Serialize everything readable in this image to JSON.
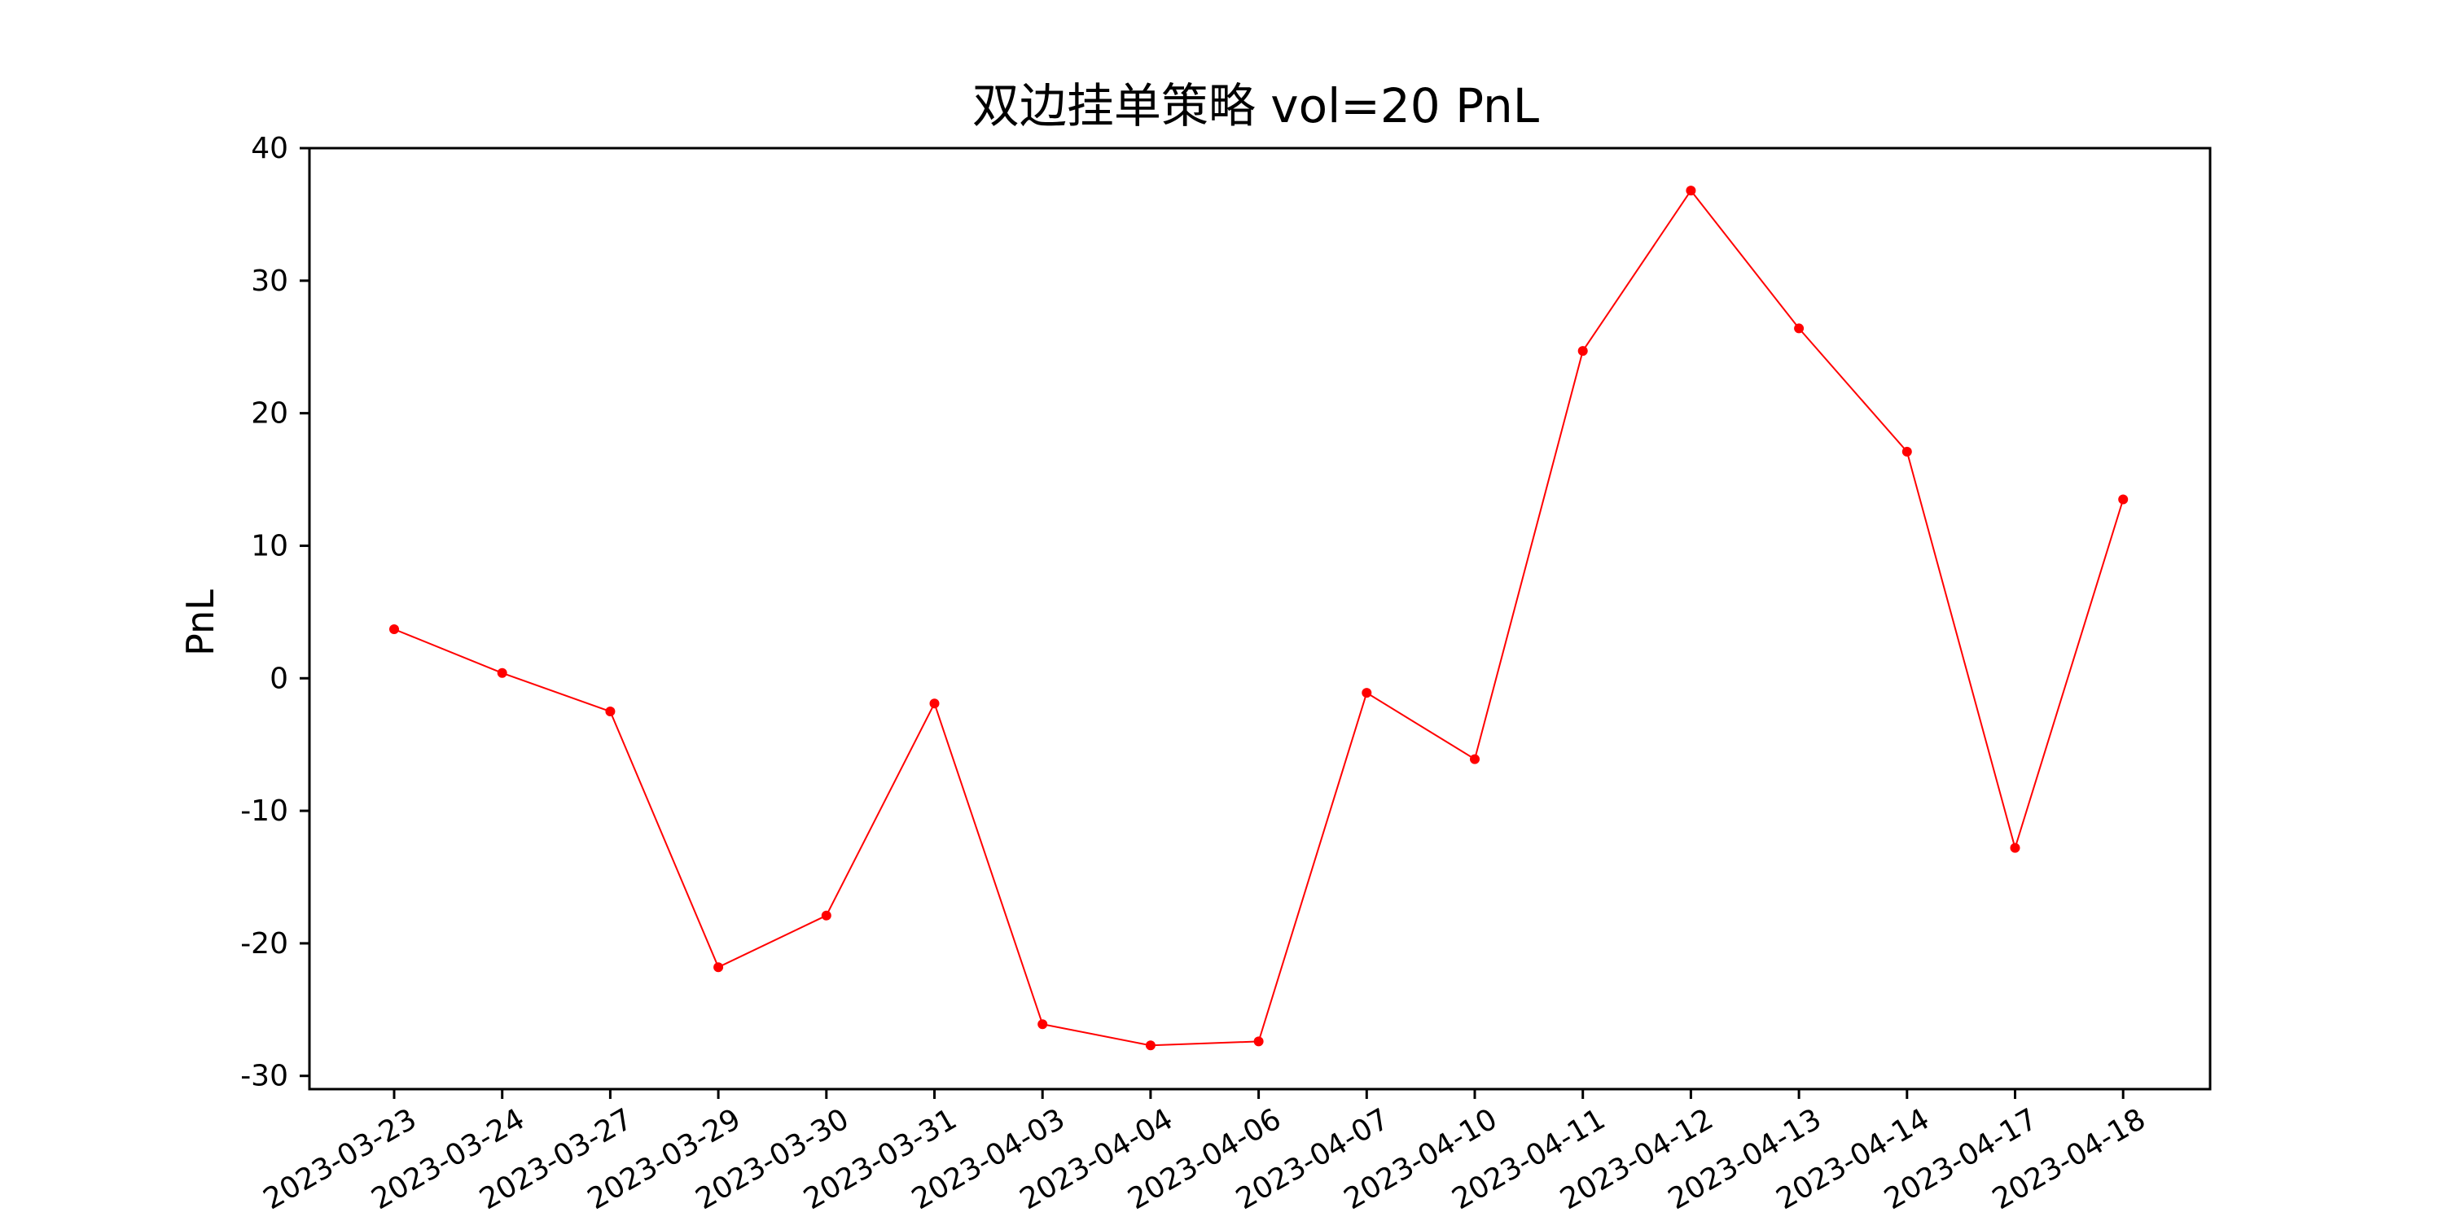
{
  "chart_data": {
    "type": "line",
    "title": "双边挂单策略 vol=20 PnL",
    "xlabel": "",
    "ylabel": "PnL",
    "x": [
      "2023-03-23",
      "2023-03-24",
      "2023-03-27",
      "2023-03-29",
      "2023-03-30",
      "2023-03-31",
      "2023-04-03",
      "2023-04-04",
      "2023-04-06",
      "2023-04-07",
      "2023-04-10",
      "2023-04-11",
      "2023-04-12",
      "2023-04-13",
      "2023-04-14",
      "2023-04-17",
      "2023-04-18"
    ],
    "series": [
      {
        "values": [
          3.7,
          0.4,
          -2.5,
          -21.8,
          -17.9,
          -1.9,
          -26.1,
          -27.7,
          -27.4,
          -1.1,
          -6.1,
          24.7,
          36.8,
          26.4,
          17.1,
          -12.8,
          13.5
        ],
        "color": "#ff0000"
      }
    ],
    "ylim": [
      -31,
      40
    ],
    "yticks": [
      -30,
      -20,
      -10,
      0,
      10,
      20,
      30,
      40
    ],
    "grid": false,
    "legend": "none"
  }
}
